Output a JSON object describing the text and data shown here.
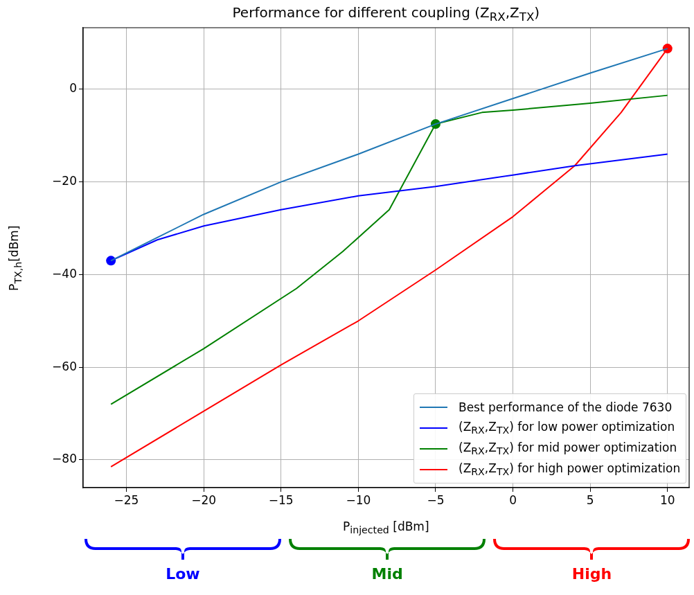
{
  "chart_data": {
    "type": "line",
    "title": "Performance for different coupling (Z$_{RX}$,Z$_{TX}$)",
    "xlabel": "P$_{injected}$ [dBm]",
    "ylabel": "P$_{TX,h}$[dBm]",
    "xlim": [
      -27.8,
      11.4
    ],
    "ylim": [
      -86,
      13.3
    ],
    "xticks": [
      {
        "value": -25,
        "label": "−25"
      },
      {
        "value": -20,
        "label": "−20"
      },
      {
        "value": -15,
        "label": "−15"
      },
      {
        "value": -10,
        "label": "−10"
      },
      {
        "value": -5,
        "label": "−5"
      },
      0,
      5,
      10
    ],
    "yticks": [
      {
        "value": -80,
        "label": "−80"
      },
      {
        "value": -60,
        "label": "−60"
      },
      {
        "value": -40,
        "label": "−40"
      },
      {
        "value": -20,
        "label": "−20"
      },
      0
    ],
    "grid": true,
    "legend": "bottom right",
    "marker": "none",
    "line_style": "solid",
    "series": [
      {
        "name": "Best performance of the diode 7630",
        "color": "#1f77b4",
        "x": [
          -26,
          -23,
          -20,
          -15,
          -10,
          -5,
          0,
          5,
          10
        ],
        "values": [
          -37,
          -32,
          -27,
          -20,
          -14,
          -7.5,
          -2,
          3.5,
          8.8
        ]
      },
      {
        "name": "(Z$_{RX}$,Z$_{TX}$) for low power optimization",
        "color": "#0000ff",
        "x": [
          -26,
          -23,
          -20,
          -15,
          -10,
          -5,
          0,
          4,
          10
        ],
        "values": [
          -37,
          -32.5,
          -29.5,
          -26,
          -23,
          -21,
          -18.5,
          -16.5,
          -14
        ]
      },
      {
        "name": "(Z$_{RX}$,Z$_{TX}$) for mid power optimization",
        "color": "#008000",
        "x": [
          -26,
          -20,
          -14,
          -11,
          -8,
          -5,
          -2,
          0,
          5,
          10
        ],
        "values": [
          -68,
          -56,
          -43,
          -35,
          -26,
          -7.5,
          -5,
          -4.5,
          -3,
          -1.3
        ]
      },
      {
        "name": "(Z$_{RX}$,Z$_{TX}$) for high power optimization",
        "color": "#ff0000",
        "x": [
          -26,
          -20,
          -15,
          -10,
          -5,
          0,
          2,
          4,
          7,
          10
        ],
        "values": [
          -81.5,
          -69.5,
          -59.5,
          -50,
          -39,
          -27.5,
          -22,
          -16.5,
          -5,
          8.8
        ]
      },
      {
        "type": "scatter",
        "marker": "circle",
        "colors": [
          "#0000ff",
          "#008000",
          "#ff0000"
        ],
        "x": [
          -26,
          -5,
          10
        ],
        "values": [
          -37,
          -7.5,
          8.8
        ]
      }
    ],
    "annotations": [
      "Low",
      "Mid",
      "High"
    ]
  }
}
